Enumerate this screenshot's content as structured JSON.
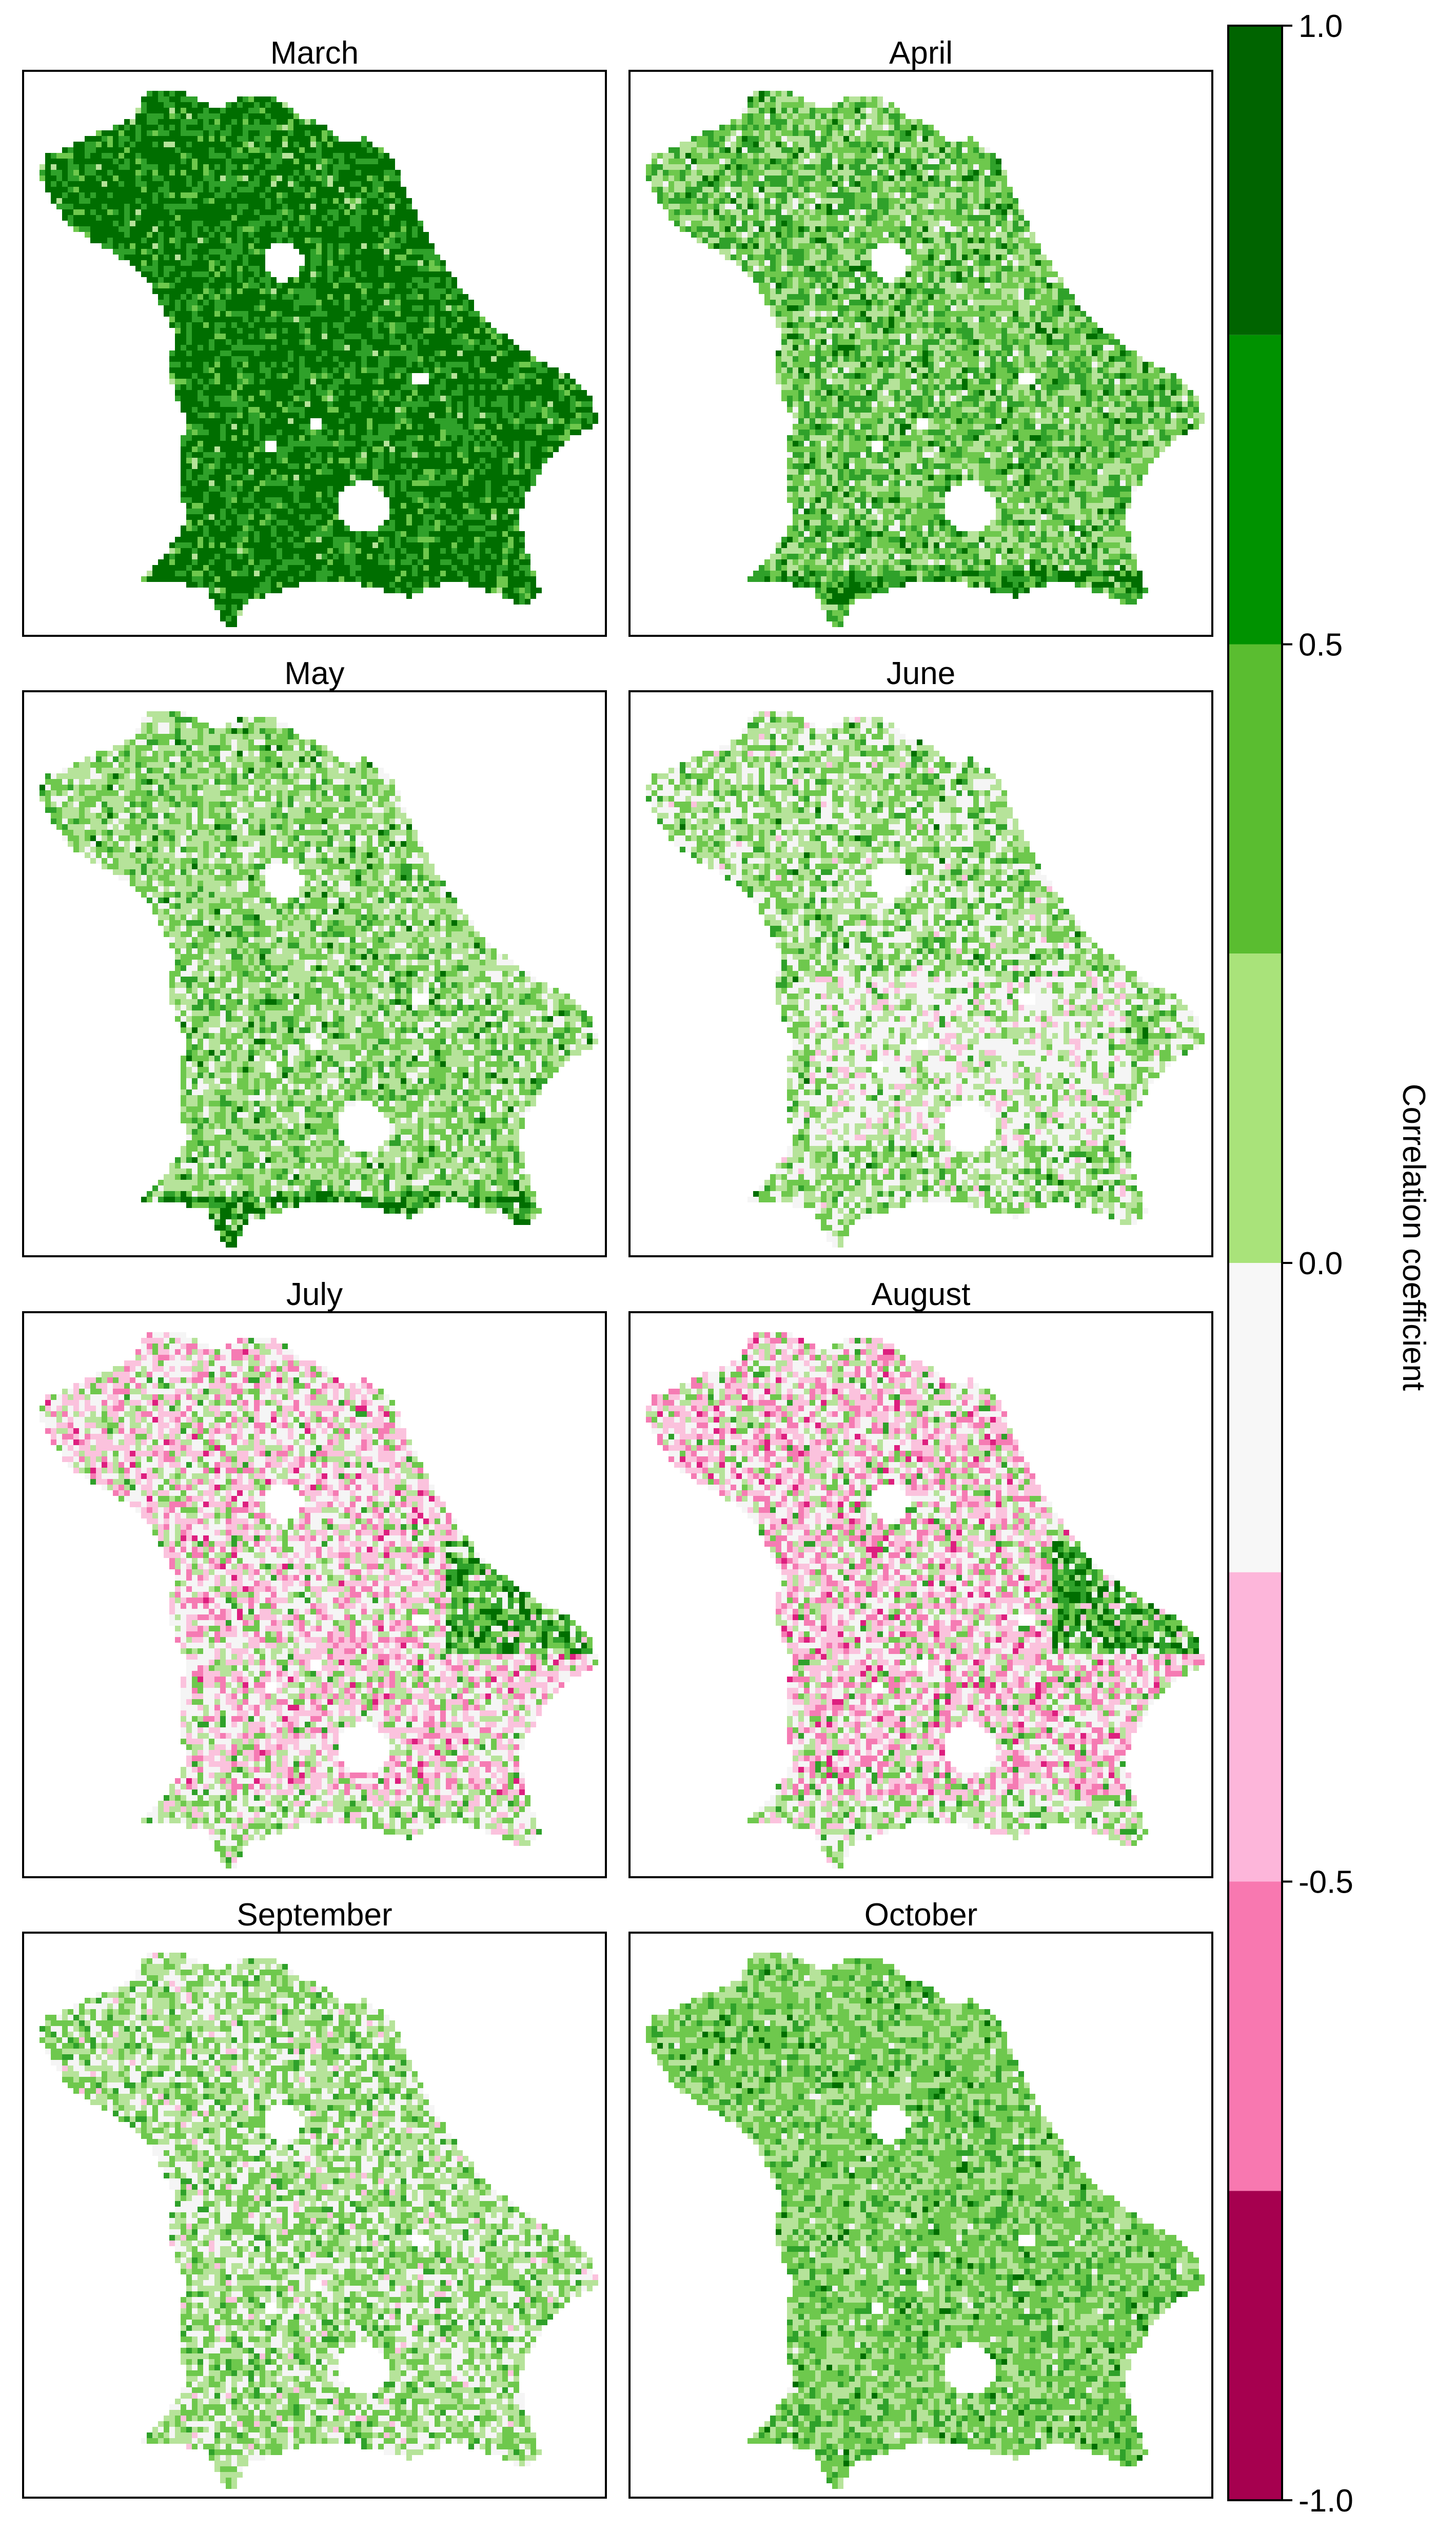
{
  "figure": {
    "panels": [
      {
        "month": "March",
        "dominant": [
          0.6,
          0.3,
          0.08,
          0.02,
          0.0,
          0.0,
          0.0,
          0.0
        ],
        "extra": "dark-green"
      },
      {
        "month": "April",
        "dominant": [
          0.05,
          0.25,
          0.35,
          0.3,
          0.05,
          0.0,
          0.0,
          0.0
        ],
        "extra": "dark-green-south"
      },
      {
        "month": "May",
        "dominant": [
          0.02,
          0.1,
          0.33,
          0.4,
          0.15,
          0.0,
          0.0,
          0.0
        ],
        "extra": ""
      },
      {
        "month": "June",
        "dominant": [
          0.01,
          0.08,
          0.28,
          0.33,
          0.28,
          0.02,
          0.0,
          0.0
        ],
        "extra": "pink-center"
      },
      {
        "month": "July",
        "dominant": [
          0.0,
          0.02,
          0.08,
          0.15,
          0.3,
          0.3,
          0.13,
          0.02
        ],
        "extra": "magenta"
      },
      {
        "month": "August",
        "dominant": [
          0.0,
          0.03,
          0.08,
          0.14,
          0.25,
          0.3,
          0.17,
          0.03
        ],
        "extra": "magenta"
      },
      {
        "month": "September",
        "dominant": [
          0.0,
          0.06,
          0.3,
          0.34,
          0.27,
          0.03,
          0.0,
          0.0
        ],
        "extra": ""
      },
      {
        "month": "October",
        "dominant": [
          0.02,
          0.14,
          0.48,
          0.34,
          0.02,
          0.0,
          0.0,
          0.0
        ],
        "extra": ""
      }
    ],
    "colorbar": {
      "title": "Correlation coefficient",
      "range": [
        -1.0,
        1.0
      ],
      "ticks": [
        "1.0",
        "0.5",
        "0.0",
        "-0.5",
        "-1.0"
      ],
      "tick_values": [
        1.0,
        0.5,
        0.0,
        -0.5,
        -1.0
      ],
      "classes": [
        {
          "from": 0.75,
          "to": 1.0,
          "color": "#006400"
        },
        {
          "from": 0.5,
          "to": 0.75,
          "color": "#009200"
        },
        {
          "from": 0.25,
          "to": 0.5,
          "color": "#5abd30"
        },
        {
          "from": 0.0,
          "to": 0.25,
          "color": "#a9e37a"
        },
        {
          "from": -0.25,
          "to": 0.0,
          "color": "#f7f7f7"
        },
        {
          "from": -0.5,
          "to": -0.25,
          "color": "#fdb6da"
        },
        {
          "from": -0.75,
          "to": -0.5,
          "color": "#f878b0"
        },
        {
          "from": -1.0,
          "to": -0.75,
          "color": "#e51583"
        }
      ],
      "bottom_color": "#a6004f"
    },
    "map_palette": [
      "#006e00",
      "#2fa12a",
      "#6ec84d",
      "#b6e39a",
      "#f5f5f5",
      "#fbc2dd",
      "#f57bb3",
      "#dd1f7f",
      "#a3004d"
    ]
  }
}
